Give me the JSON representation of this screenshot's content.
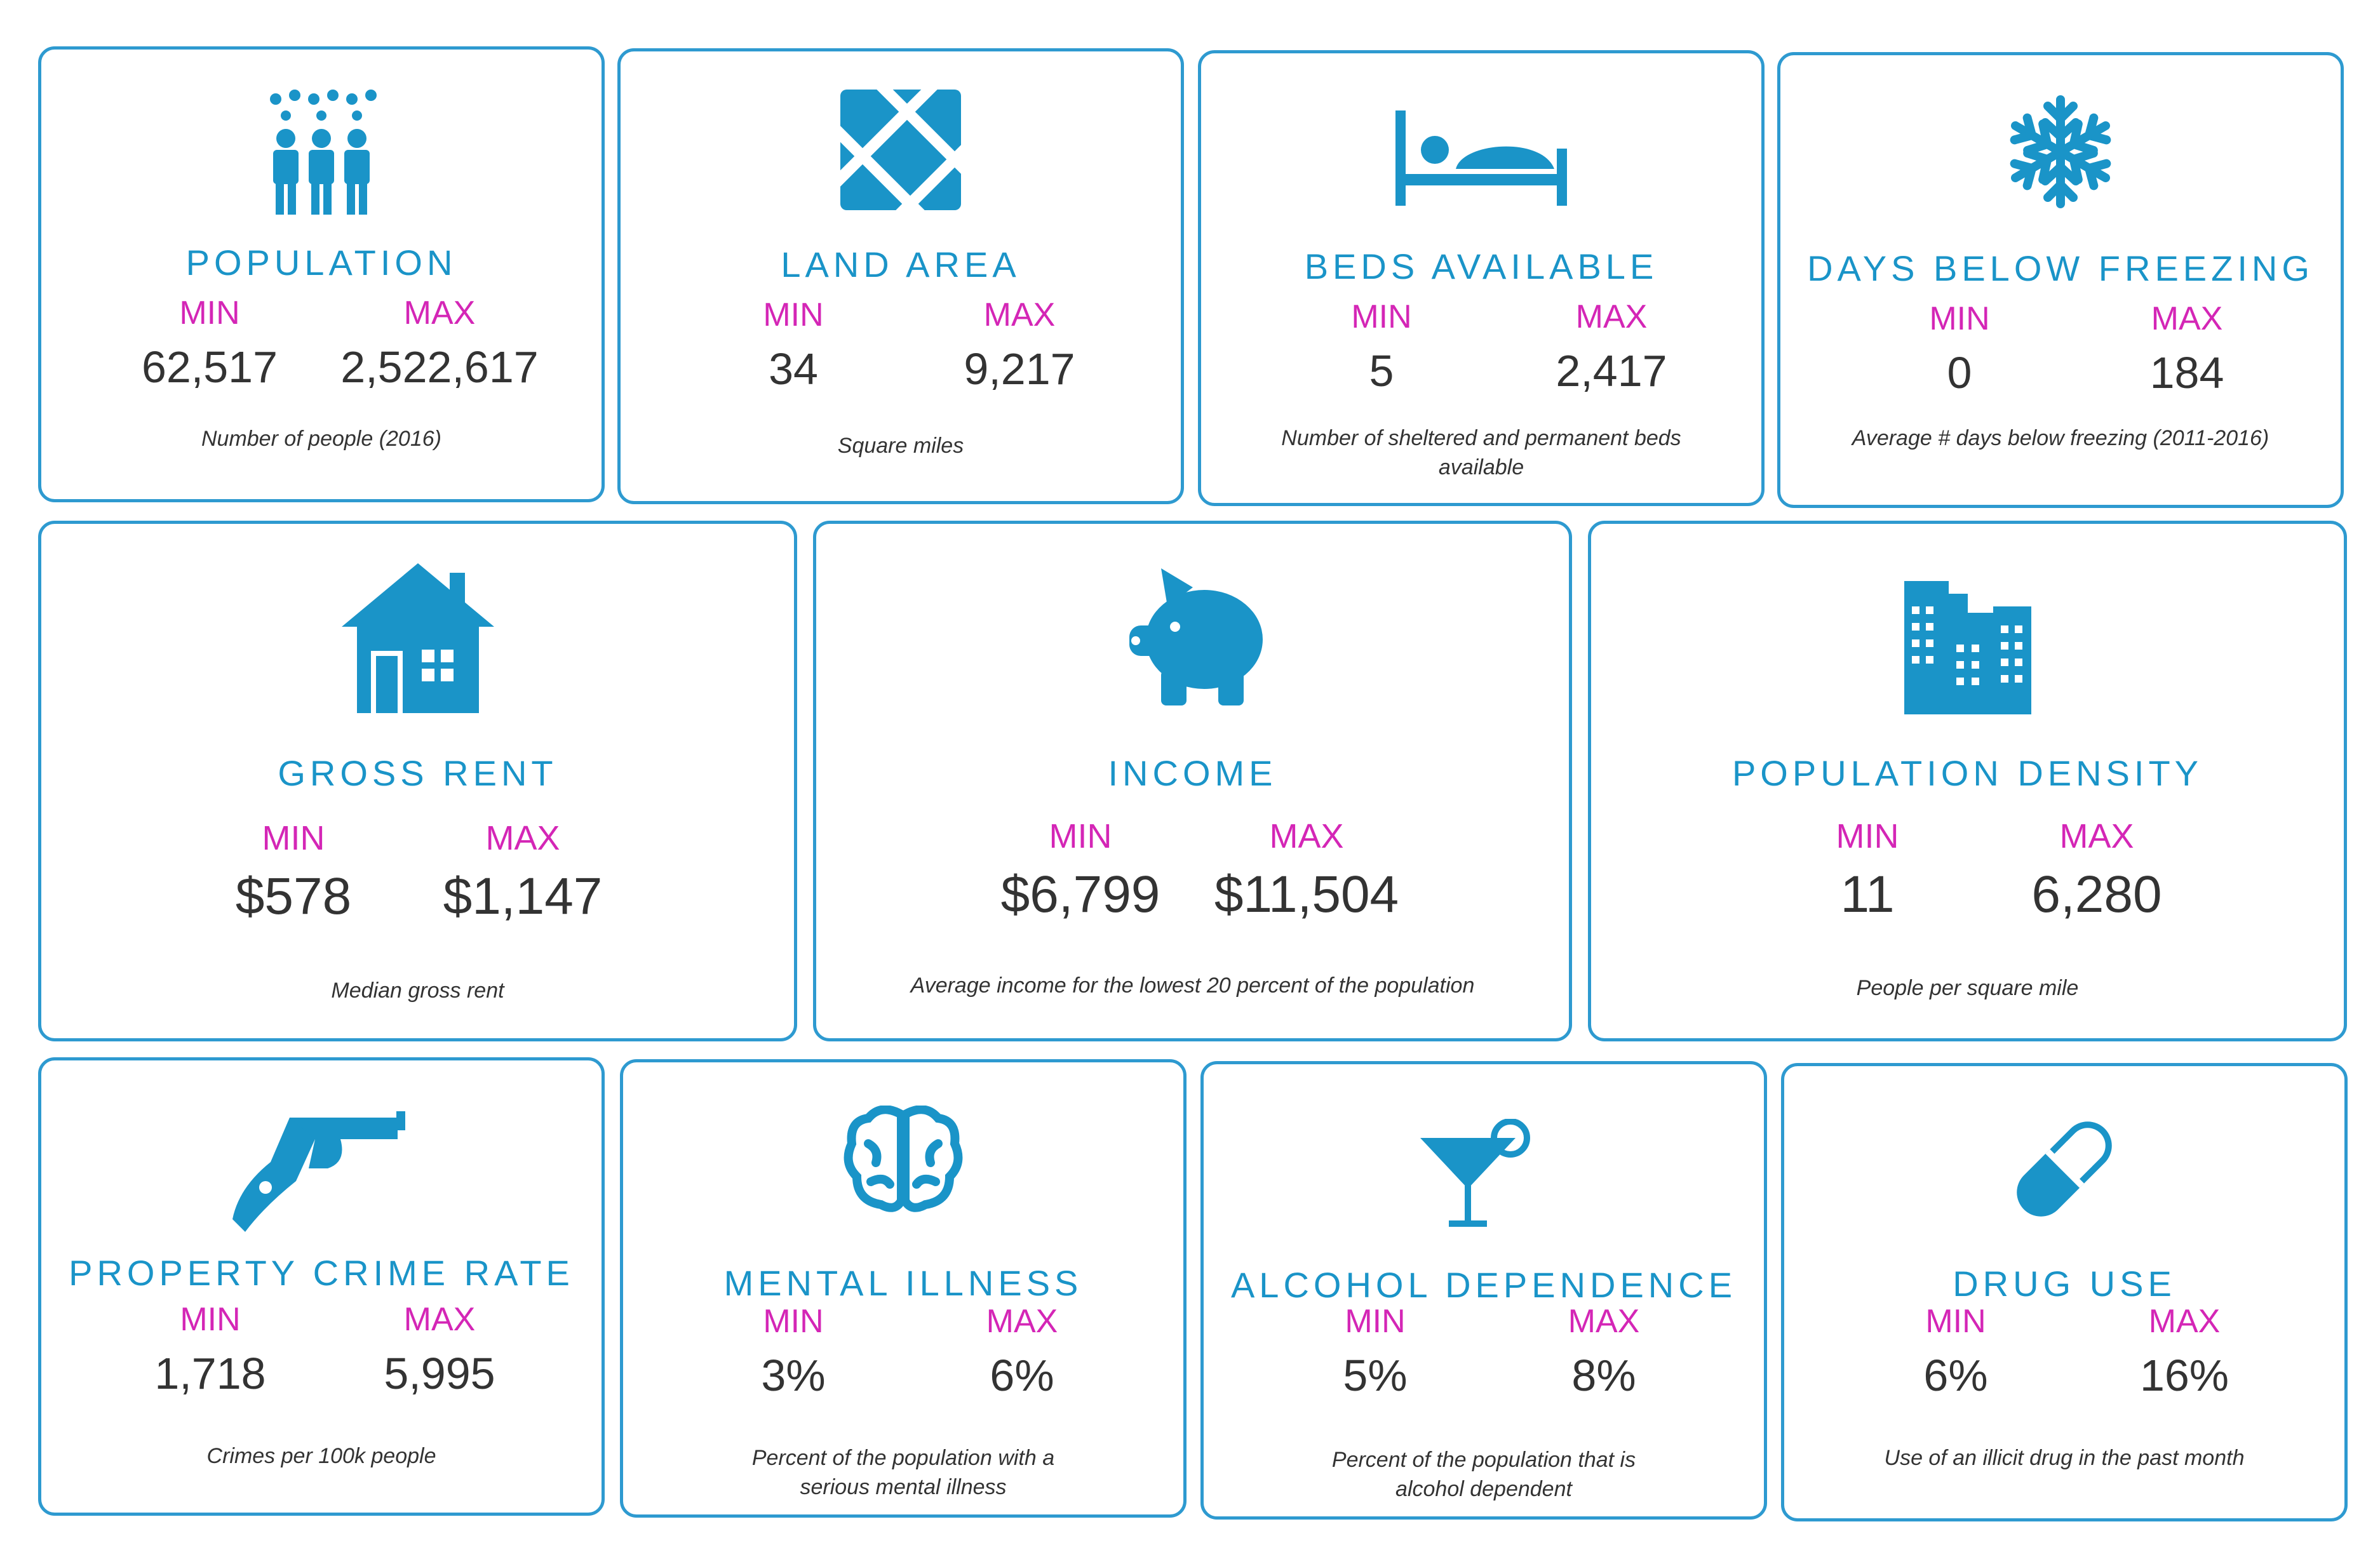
{
  "colors": {
    "accent": "#1a94c8",
    "border": "#2e9ad0",
    "minmax": "#d426b6",
    "text": "#333333"
  },
  "cards": [
    {
      "icon": "people-icon",
      "title": "POPULATION",
      "min_label": "MIN",
      "max_label": "MAX",
      "min": "62,517",
      "max": "2,522,617",
      "desc": "Number of people (2016)"
    },
    {
      "icon": "map-icon",
      "title": "LAND AREA",
      "min_label": "MIN",
      "max_label": "MAX",
      "min": "34",
      "max": "9,217",
      "desc": "Square miles"
    },
    {
      "icon": "bed-icon",
      "title": "BEDS AVAILABLE",
      "min_label": "MIN",
      "max_label": "MAX",
      "min": "5",
      "max": "2,417",
      "desc": "Number of sheltered and permanent beds available"
    },
    {
      "icon": "snowflake-icon",
      "title": "DAYS BELOW FREEZING",
      "min_label": "MIN",
      "max_label": "MAX",
      "min": "0",
      "max": "184",
      "desc": "Average # days below freezing (2011-2016)"
    },
    {
      "icon": "house-icon",
      "title": "GROSS RENT",
      "min_label": "MIN",
      "max_label": "MAX",
      "min": "$578",
      "max": "$1,147",
      "desc": "Median gross rent"
    },
    {
      "icon": "piggy-bank-icon",
      "title": "INCOME",
      "min_label": "MIN",
      "max_label": "MAX",
      "min": "$6,799",
      "max": "$11,504",
      "desc": "Average income for the lowest 20 percent of the population"
    },
    {
      "icon": "buildings-icon",
      "title": "POPULATION DENSITY",
      "min_label": "MIN",
      "max_label": "MAX",
      "min": "11",
      "max": "6,280",
      "desc": "People per square mile"
    },
    {
      "icon": "gun-icon",
      "title": "PROPERTY CRIME RATE",
      "min_label": "MIN",
      "max_label": "MAX",
      "min": "1,718",
      "max": "5,995",
      "desc": "Crimes per 100k people"
    },
    {
      "icon": "brain-icon",
      "title": "MENTAL ILLNESS",
      "min_label": "MIN",
      "max_label": "MAX",
      "min": "3%",
      "max": "6%",
      "desc": "Percent of the population with a serious mental illness"
    },
    {
      "icon": "cocktail-icon",
      "title": "ALCOHOL DEPENDENCE",
      "min_label": "MIN",
      "max_label": "MAX",
      "min": "5%",
      "max": "8%",
      "desc": "Percent of the population that is alcohol dependent"
    },
    {
      "icon": "pill-icon",
      "title": "DRUG USE",
      "min_label": "MIN",
      "max_label": "MAX",
      "min": "6%",
      "max": "16%",
      "desc": "Use of an illicit drug in the past month"
    }
  ]
}
